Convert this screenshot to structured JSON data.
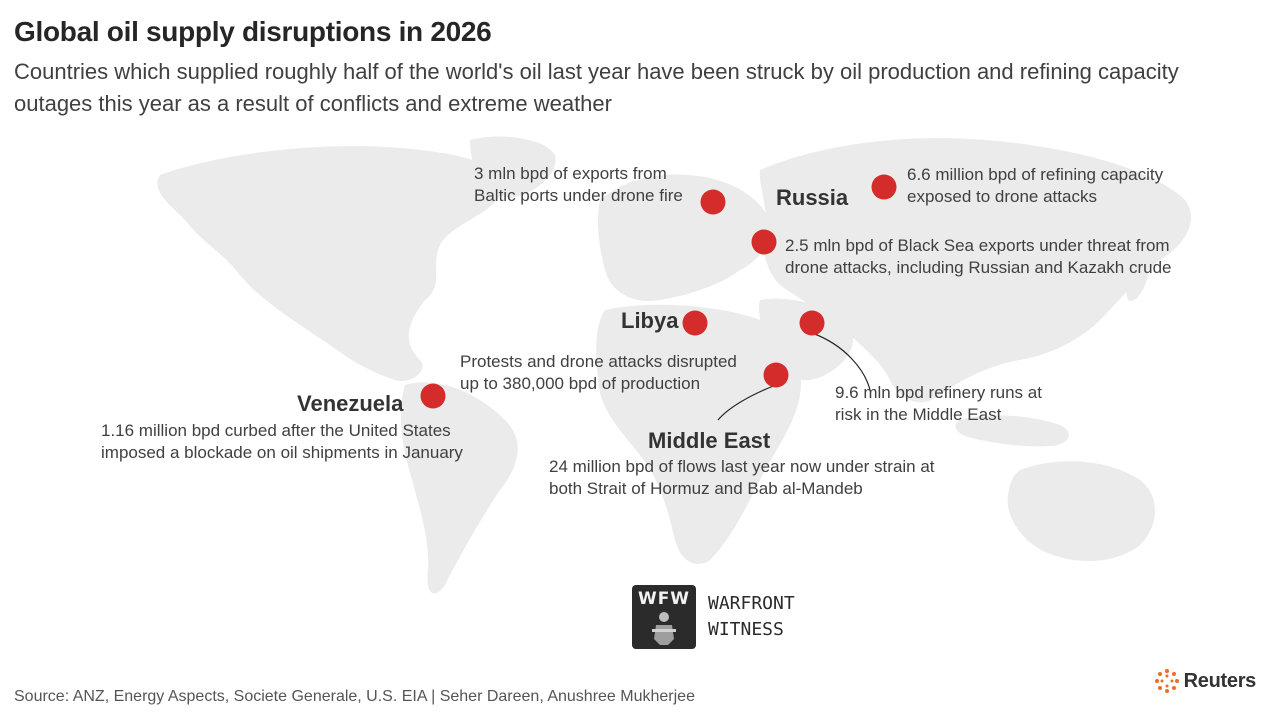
{
  "header": {
    "title": "Global oil supply disruptions in 2026",
    "subtitle": "Countries which supplied roughly half of the world's oil last year have been struck by oil production and refining capacity outages this year as a result of conflicts and extreme weather"
  },
  "colors": {
    "marker": "#d42b2b",
    "land": "#ebebeb",
    "text": "#404040",
    "heading": "#262626"
  },
  "countries": {
    "russia": "Russia",
    "libya": "Libya",
    "venezuela": "Venezuela",
    "middle_east": "Middle East"
  },
  "annotations": {
    "baltic": [
      "3 mln bpd of exports from",
      "Baltic ports under drone fire"
    ],
    "russia_refining": [
      "6.6 million bpd of refining capacity",
      "exposed to drone attacks"
    ],
    "black_sea": [
      "2.5 mln bpd of Black Sea exports under threat from",
      "drone attacks, including Russian and Kazakh crude"
    ],
    "libya": [
      "Protests and drone attacks disrupted",
      "up to 380,000 bpd of production"
    ],
    "venezuela": [
      "1.16 million bpd curbed after the United States",
      "imposed a blockade on oil shipments in January"
    ],
    "refinery_runs": [
      "9.6 mln bpd refinery runs at",
      "risk in the Middle East"
    ],
    "middle_east": [
      "24 million bpd of flows last year now under strain at",
      "both Strait of Hormuz and Bab al-Mandeb"
    ]
  },
  "watermark": {
    "logo_letters": "WFW",
    "line1": "WARFRONT",
    "line2": "WITNESS"
  },
  "footer": {
    "source": "Source: ANZ, Energy Aspects, Societe Generale, U.S. EIA | Seher Dareen, Anushree Mukherjee",
    "brand": "Reuters"
  }
}
